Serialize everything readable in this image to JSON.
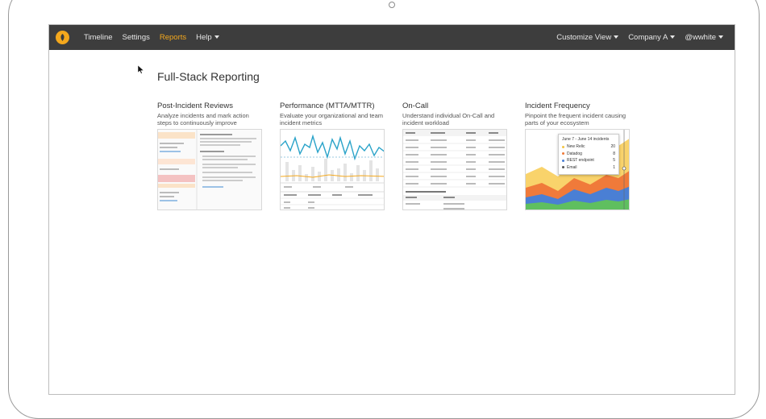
{
  "nav": {
    "items": [
      "Timeline",
      "Settings",
      "Reports",
      "Help"
    ],
    "active": "Reports",
    "right": [
      "Customize View",
      "Company A",
      "@wwhite"
    ]
  },
  "page": {
    "title": "Full-Stack Reporting"
  },
  "cards": [
    {
      "title": "Post-Incident Reviews",
      "desc": "Analyze incidents and mark action steps to continuously improve"
    },
    {
      "title": "Performance (MTTA/MTTR)",
      "desc": "Evaluate your organizational and team incident metrics"
    },
    {
      "title": "On-Call",
      "desc": "Understand individual On-Call and incident workload"
    },
    {
      "title": "Incident Frequency",
      "desc": "Pinpoint the frequent incident causing parts of your ecosystem"
    }
  ],
  "frequency_tooltip": {
    "title": "June 7 - June 14 incidents",
    "rows": [
      {
        "label": "New Relic",
        "value": "20",
        "color": "#f4c542"
      },
      {
        "label": "Datadog",
        "value": "8",
        "color": "#f07a3a"
      },
      {
        "label": "REST endpoint",
        "value": "5",
        "color": "#4a7fd4"
      },
      {
        "label": "Email",
        "value": "1",
        "color": "#555555"
      }
    ]
  },
  "colors": {
    "navbar": "#3d3d3d",
    "accent": "#f4a81d"
  }
}
